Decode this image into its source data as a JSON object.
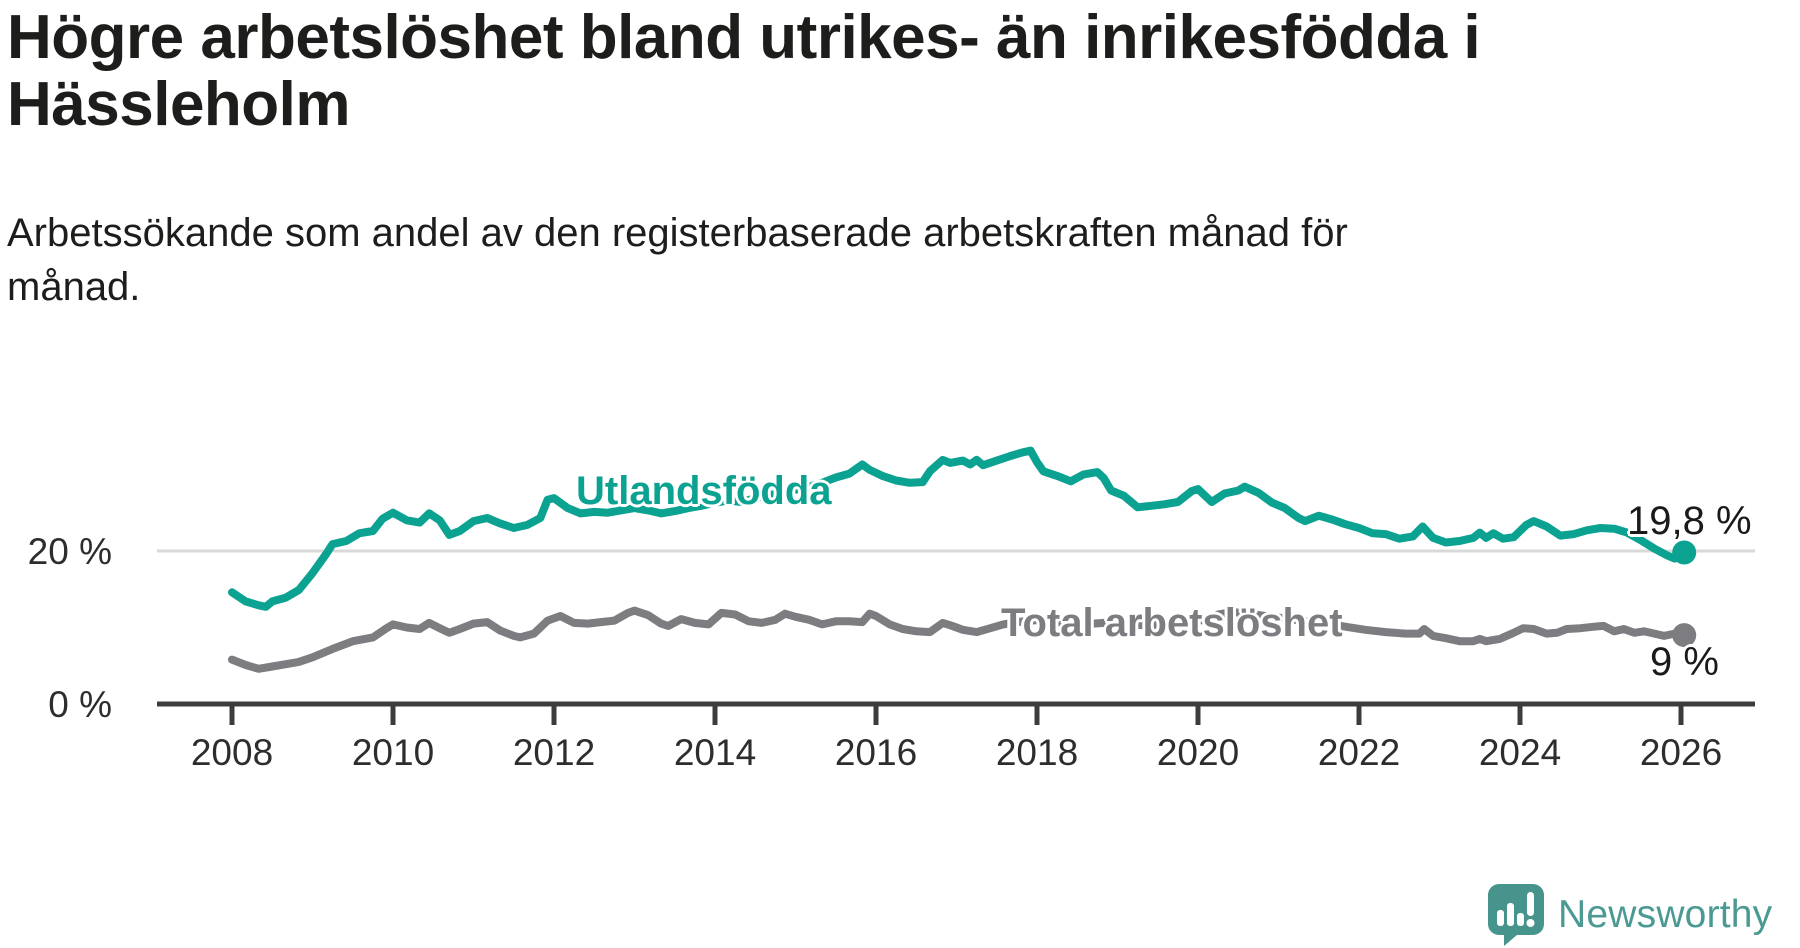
{
  "header": {
    "title_lines": [
      "Högre arbetslöshet bland utrikes- än inrikesfödda i",
      "Hässleholm"
    ],
    "subtitle_lines": [
      "Arbetssökande som andel av den registerbaserade arbetskraften månad för",
      "månad."
    ]
  },
  "footer": {
    "brand": "Newsworthy"
  },
  "colors": {
    "utlandsfodda": "#0ba291",
    "total": "#7d7d81",
    "axis": "#3c3c3c",
    "gridline": "#d9d9d9",
    "text": "#1d1d1b",
    "value_label": "#1a1a1a",
    "logo_bubble": "#47948c",
    "logo_text": "#4a9a93"
  },
  "chart_data": {
    "type": "line",
    "title": "Högre arbetslöshet bland utrikes- än inrikesfödda i Hässleholm",
    "subtitle": "Arbetssökande som andel av den registerbaserade arbetskraften månad för månad.",
    "unit": "%",
    "x_start": 2008,
    "x_end": 2026.04,
    "x_ticks": [
      2008,
      2010,
      2012,
      2014,
      2016,
      2018,
      2020,
      2022,
      2024,
      2026
    ],
    "y_ticks": [
      {
        "value": 0,
        "label": "0 %"
      },
      {
        "value": 20,
        "label": "20 %"
      }
    ],
    "ylim": [
      0,
      36
    ],
    "grid": "single-line-at-20",
    "legend_position": "inline-labels",
    "series_labels": [
      "Utlandsfödda",
      "Total arbetslöshet"
    ],
    "end_labels": [
      "19,8 %",
      "9 %"
    ],
    "series": [
      {
        "name": "Utlandsfödda",
        "color": "#0ba291",
        "end_value": 19.8,
        "points": [
          [
            2008.0,
            14.6
          ],
          [
            2008.17,
            13.4
          ],
          [
            2008.33,
            12.9
          ],
          [
            2008.42,
            12.7
          ],
          [
            2008.5,
            13.4
          ],
          [
            2008.67,
            13.9
          ],
          [
            2008.83,
            14.9
          ],
          [
            2009.0,
            17.1
          ],
          [
            2009.17,
            19.6
          ],
          [
            2009.25,
            20.9
          ],
          [
            2009.42,
            21.3
          ],
          [
            2009.58,
            22.3
          ],
          [
            2009.75,
            22.6
          ],
          [
            2009.87,
            24.2
          ],
          [
            2010.0,
            25.0
          ],
          [
            2010.17,
            24.0
          ],
          [
            2010.33,
            23.7
          ],
          [
            2010.45,
            24.9
          ],
          [
            2010.58,
            24.0
          ],
          [
            2010.7,
            22.1
          ],
          [
            2010.83,
            22.6
          ],
          [
            2011.0,
            23.9
          ],
          [
            2011.17,
            24.3
          ],
          [
            2011.33,
            23.6
          ],
          [
            2011.5,
            23.0
          ],
          [
            2011.67,
            23.4
          ],
          [
            2011.83,
            24.3
          ],
          [
            2011.92,
            26.7
          ],
          [
            2012.0,
            26.9
          ],
          [
            2012.17,
            25.6
          ],
          [
            2012.33,
            24.9
          ],
          [
            2012.5,
            25.1
          ],
          [
            2012.67,
            25.0
          ],
          [
            2012.83,
            25.3
          ],
          [
            2013.0,
            25.6
          ],
          [
            2013.17,
            25.3
          ],
          [
            2013.33,
            24.9
          ],
          [
            2013.5,
            25.2
          ],
          [
            2013.67,
            25.6
          ],
          [
            2013.83,
            25.9
          ],
          [
            2014.0,
            26.3
          ],
          [
            2014.17,
            26.6
          ],
          [
            2014.33,
            26.4
          ],
          [
            2014.5,
            26.9
          ],
          [
            2014.67,
            27.3
          ],
          [
            2014.83,
            27.6
          ],
          [
            2015.0,
            28.0
          ],
          [
            2015.17,
            28.4
          ],
          [
            2015.33,
            28.9
          ],
          [
            2015.5,
            29.6
          ],
          [
            2015.67,
            30.1
          ],
          [
            2015.83,
            31.3
          ],
          [
            2015.92,
            30.6
          ],
          [
            2016.08,
            29.8
          ],
          [
            2016.25,
            29.2
          ],
          [
            2016.42,
            28.9
          ],
          [
            2016.58,
            29.0
          ],
          [
            2016.67,
            30.4
          ],
          [
            2016.83,
            31.9
          ],
          [
            2016.92,
            31.5
          ],
          [
            2017.08,
            31.8
          ],
          [
            2017.17,
            31.3
          ],
          [
            2017.25,
            31.9
          ],
          [
            2017.33,
            31.2
          ],
          [
            2017.5,
            31.8
          ],
          [
            2017.67,
            32.4
          ],
          [
            2017.83,
            32.9
          ],
          [
            2017.92,
            33.1
          ],
          [
            2018.0,
            31.6
          ],
          [
            2018.08,
            30.4
          ],
          [
            2018.25,
            29.8
          ],
          [
            2018.42,
            29.1
          ],
          [
            2018.58,
            30.0
          ],
          [
            2018.75,
            30.3
          ],
          [
            2018.83,
            29.5
          ],
          [
            2018.92,
            27.9
          ],
          [
            2019.08,
            27.2
          ],
          [
            2019.25,
            25.7
          ],
          [
            2019.42,
            25.9
          ],
          [
            2019.58,
            26.1
          ],
          [
            2019.75,
            26.4
          ],
          [
            2019.92,
            27.8
          ],
          [
            2020.0,
            28.1
          ],
          [
            2020.17,
            26.4
          ],
          [
            2020.33,
            27.5
          ],
          [
            2020.5,
            27.9
          ],
          [
            2020.58,
            28.4
          ],
          [
            2020.75,
            27.6
          ],
          [
            2020.92,
            26.3
          ],
          [
            2021.08,
            25.6
          ],
          [
            2021.25,
            24.3
          ],
          [
            2021.33,
            23.9
          ],
          [
            2021.5,
            24.6
          ],
          [
            2021.67,
            24.1
          ],
          [
            2021.83,
            23.5
          ],
          [
            2022.0,
            23.0
          ],
          [
            2022.17,
            22.3
          ],
          [
            2022.33,
            22.2
          ],
          [
            2022.5,
            21.6
          ],
          [
            2022.67,
            21.9
          ],
          [
            2022.79,
            23.2
          ],
          [
            2022.92,
            21.7
          ],
          [
            2023.08,
            21.1
          ],
          [
            2023.25,
            21.3
          ],
          [
            2023.42,
            21.7
          ],
          [
            2023.5,
            22.4
          ],
          [
            2023.58,
            21.7
          ],
          [
            2023.67,
            22.3
          ],
          [
            2023.79,
            21.6
          ],
          [
            2023.92,
            21.8
          ],
          [
            2024.08,
            23.4
          ],
          [
            2024.17,
            23.9
          ],
          [
            2024.33,
            23.2
          ],
          [
            2024.5,
            22.0
          ],
          [
            2024.67,
            22.2
          ],
          [
            2024.83,
            22.7
          ],
          [
            2025.0,
            23.0
          ],
          [
            2025.17,
            22.9
          ],
          [
            2025.33,
            22.4
          ],
          [
            2025.5,
            21.4
          ],
          [
            2025.67,
            20.3
          ],
          [
            2025.83,
            19.4
          ],
          [
            2025.92,
            19.0
          ],
          [
            2026.04,
            19.8
          ]
        ]
      },
      {
        "name": "Total arbetslöshet",
        "color": "#7d7d81",
        "end_value": 9,
        "points": [
          [
            2008.0,
            5.8
          ],
          [
            2008.17,
            5.1
          ],
          [
            2008.33,
            4.6
          ],
          [
            2008.5,
            4.9
          ],
          [
            2008.67,
            5.2
          ],
          [
            2008.83,
            5.5
          ],
          [
            2009.0,
            6.1
          ],
          [
            2009.25,
            7.2
          ],
          [
            2009.5,
            8.2
          ],
          [
            2009.75,
            8.7
          ],
          [
            2009.92,
            9.9
          ],
          [
            2010.0,
            10.4
          ],
          [
            2010.17,
            10.0
          ],
          [
            2010.33,
            9.8
          ],
          [
            2010.45,
            10.6
          ],
          [
            2010.6,
            9.8
          ],
          [
            2010.7,
            9.3
          ],
          [
            2010.83,
            9.8
          ],
          [
            2011.0,
            10.5
          ],
          [
            2011.17,
            10.7
          ],
          [
            2011.33,
            9.6
          ],
          [
            2011.5,
            8.9
          ],
          [
            2011.58,
            8.7
          ],
          [
            2011.75,
            9.2
          ],
          [
            2011.92,
            10.9
          ],
          [
            2012.08,
            11.5
          ],
          [
            2012.25,
            10.6
          ],
          [
            2012.42,
            10.5
          ],
          [
            2012.58,
            10.7
          ],
          [
            2012.75,
            10.9
          ],
          [
            2012.92,
            11.9
          ],
          [
            2013.0,
            12.2
          ],
          [
            2013.17,
            11.6
          ],
          [
            2013.33,
            10.5
          ],
          [
            2013.42,
            10.2
          ],
          [
            2013.58,
            11.1
          ],
          [
            2013.75,
            10.6
          ],
          [
            2013.92,
            10.4
          ],
          [
            2014.08,
            11.9
          ],
          [
            2014.25,
            11.7
          ],
          [
            2014.42,
            10.8
          ],
          [
            2014.58,
            10.6
          ],
          [
            2014.75,
            11.0
          ],
          [
            2014.87,
            11.8
          ],
          [
            2015.0,
            11.4
          ],
          [
            2015.17,
            11.0
          ],
          [
            2015.33,
            10.4
          ],
          [
            2015.5,
            10.8
          ],
          [
            2015.67,
            10.8
          ],
          [
            2015.83,
            10.7
          ],
          [
            2015.92,
            11.8
          ],
          [
            2016.0,
            11.5
          ],
          [
            2016.17,
            10.4
          ],
          [
            2016.33,
            9.8
          ],
          [
            2016.5,
            9.5
          ],
          [
            2016.67,
            9.4
          ],
          [
            2016.83,
            10.6
          ],
          [
            2016.92,
            10.3
          ],
          [
            2017.08,
            9.7
          ],
          [
            2017.25,
            9.4
          ],
          [
            2017.42,
            9.9
          ],
          [
            2017.58,
            10.4
          ],
          [
            2017.75,
            10.7
          ],
          [
            2017.92,
            10.9
          ],
          [
            2018.08,
            11.0
          ],
          [
            2018.33,
            10.6
          ],
          [
            2018.58,
            10.4
          ],
          [
            2018.83,
            10.6
          ],
          [
            2019.08,
            10.4
          ],
          [
            2019.33,
            10.3
          ],
          [
            2019.58,
            10.4
          ],
          [
            2019.83,
            10.6
          ],
          [
            2020.08,
            11.0
          ],
          [
            2020.25,
            11.7
          ],
          [
            2020.42,
            12.0
          ],
          [
            2020.58,
            11.9
          ],
          [
            2020.83,
            11.5
          ],
          [
            2021.08,
            11.2
          ],
          [
            2021.33,
            10.8
          ],
          [
            2021.58,
            10.5
          ],
          [
            2021.83,
            10.1
          ],
          [
            2022.08,
            9.7
          ],
          [
            2022.33,
            9.4
          ],
          [
            2022.58,
            9.2
          ],
          [
            2022.75,
            9.2
          ],
          [
            2022.81,
            9.8
          ],
          [
            2022.92,
            8.9
          ],
          [
            2023.08,
            8.6
          ],
          [
            2023.25,
            8.2
          ],
          [
            2023.42,
            8.2
          ],
          [
            2023.5,
            8.5
          ],
          [
            2023.58,
            8.2
          ],
          [
            2023.75,
            8.5
          ],
          [
            2023.92,
            9.3
          ],
          [
            2024.04,
            9.9
          ],
          [
            2024.17,
            9.8
          ],
          [
            2024.33,
            9.2
          ],
          [
            2024.46,
            9.3
          ],
          [
            2024.58,
            9.8
          ],
          [
            2024.75,
            9.9
          ],
          [
            2024.92,
            10.1
          ],
          [
            2025.04,
            10.2
          ],
          [
            2025.17,
            9.5
          ],
          [
            2025.29,
            9.8
          ],
          [
            2025.42,
            9.3
          ],
          [
            2025.54,
            9.5
          ],
          [
            2025.67,
            9.2
          ],
          [
            2025.79,
            8.9
          ],
          [
            2025.92,
            9.2
          ],
          [
            2026.04,
            9.0
          ]
        ]
      }
    ]
  }
}
